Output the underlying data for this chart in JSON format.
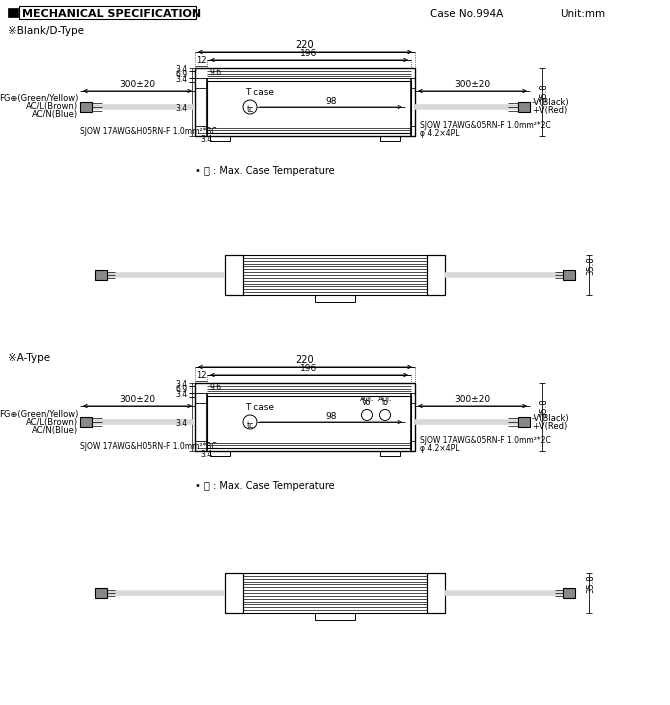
{
  "title": "MECHANICAL SPECIFICATION",
  "case_no": "Case No.994A",
  "unit": "Unit:mm",
  "bg_color": "#ffffff",
  "line_color": "#000000",
  "section1_label": "※Blank/D-Type",
  "section2_label": "※A-Type",
  "dim_220": "220",
  "dim_196": "196",
  "dim_12": "12",
  "dim_9_6": "9.6",
  "dim_98": "98",
  "dim_35_8": "35.8",
  "cable_left": "300±20",
  "cable_right": "300±20",
  "wire_left_label1": "FG⊕(Green/Yellow)",
  "wire_left_label2": "AC/L(Brown)",
  "wire_left_label3": "AC/N(Blue)",
  "wire_left_bottom": "SJOW 17AWG&H05RN-F 1.0mm²*3C",
  "wire_right_label1": "-V(Black)",
  "wire_right_label2": "+V(Red)",
  "wire_right_bottom": "SJOW 17AWG&05RN-F 1.0mm²*2C",
  "wire_right_bottom2": "φ 4.2×4PL",
  "tc_label": "T case",
  "tc_circle": "tc",
  "tc_note": "• Ⓣ : Max. Case Temperature"
}
